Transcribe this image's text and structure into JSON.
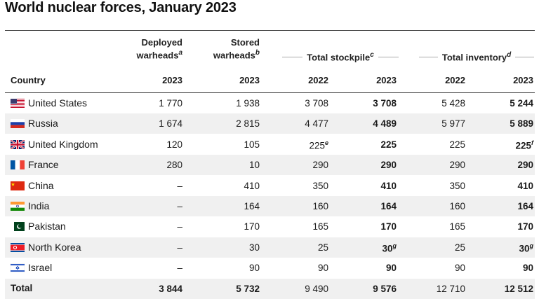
{
  "title": "World nuclear forces, January 2023",
  "headers": {
    "deployed": "Deployed",
    "deployed2": "warheads",
    "deployed_fn": "a",
    "stored": "Stored",
    "stored2": "warheads",
    "stored_fn": "b",
    "stockpile": "Total stockpile",
    "stockpile_fn": "c",
    "inventory": "Total inventory",
    "inventory_fn": "d",
    "country": "Country",
    "y2023": "2023",
    "y2022": "2022"
  },
  "rows": [
    {
      "country": "United States",
      "flag": "us",
      "deployed": "1 770",
      "stored": "1 938",
      "stock22": "3 708",
      "stock23": "3 708",
      "inv22": "5 428",
      "inv23": "5 244"
    },
    {
      "country": "Russia",
      "flag": "ru",
      "deployed": "1 674",
      "stored": "2 815",
      "stock22": "4 477",
      "stock23": "4 489",
      "inv22": "5 977",
      "inv23": "5 889"
    },
    {
      "country": "United Kingdom",
      "flag": "uk",
      "deployed": "120",
      "stored": "105",
      "stock22": "225",
      "stock22_fn": "e",
      "stock23": "225",
      "inv22": "225",
      "inv23": "225",
      "inv23_fn": "f"
    },
    {
      "country": "France",
      "flag": "fr",
      "deployed": "280",
      "stored": "10",
      "stock22": "290",
      "stock23": "290",
      "inv22": "290",
      "inv23": "290"
    },
    {
      "country": "China",
      "flag": "cn",
      "deployed": "–",
      "stored": "410",
      "stock22": "350",
      "stock23": "410",
      "inv22": "350",
      "inv23": "410"
    },
    {
      "country": "India",
      "flag": "in",
      "deployed": "–",
      "stored": "164",
      "stock22": "160",
      "stock23": "164",
      "inv22": "160",
      "inv23": "164"
    },
    {
      "country": "Pakistan",
      "flag": "pk",
      "deployed": "–",
      "stored": "170",
      "stock22": "165",
      "stock23": "170",
      "inv22": "165",
      "inv23": "170"
    },
    {
      "country": "North Korea",
      "flag": "kp",
      "deployed": "–",
      "stored": "30",
      "stock22": "25",
      "stock23": "30",
      "stock23_fn": "g",
      "inv22": "25",
      "inv23": "30",
      "inv23_fn": "g"
    },
    {
      "country": "Israel",
      "flag": "il",
      "deployed": "–",
      "stored": "90",
      "stock22": "90",
      "stock23": "90",
      "inv22": "90",
      "inv23": "90"
    }
  ],
  "total": {
    "country": "Total",
    "deployed": "3 844",
    "stored": "5 732",
    "stock22": "9 490",
    "stock23": "9 576",
    "inv22": "12 710",
    "inv23": "12 512"
  }
}
